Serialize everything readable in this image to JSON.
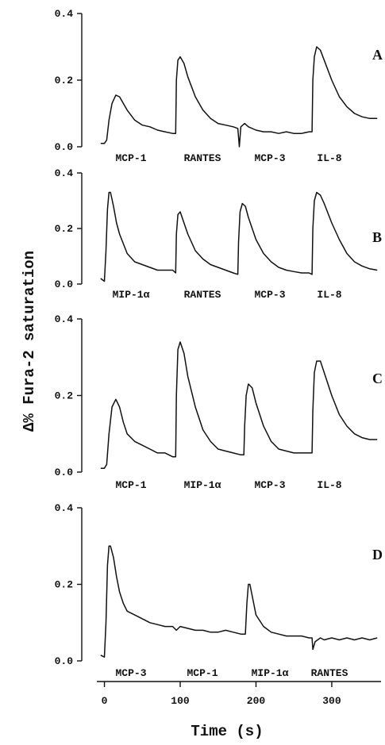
{
  "chart_data": {
    "type": "line",
    "ylabel": "Δ% Fura-2 saturation",
    "xlabel": "Time (s)",
    "xlim": [
      -10,
      365
    ],
    "xticks": [
      "0",
      "100",
      "200",
      "300"
    ],
    "xtick_values": [
      0,
      100,
      200,
      300
    ],
    "panels": [
      {
        "letter": "A",
        "ylim": [
          0,
          0.4
        ],
        "yticks": [
          "0.0",
          "0.2",
          "0.4"
        ],
        "ytick_values": [
          0,
          0.2,
          0.4
        ],
        "stimuli": [
          "MCP-1",
          "RANTES",
          "MCP-3",
          "IL-8"
        ],
        "stim_times": [
          3,
          95,
          178,
          275
        ],
        "series": [
          {
            "x": [
              -5,
              0,
              3,
              6,
              10,
              15,
              20,
              30,
              40,
              50,
              60,
              70,
              80,
              90,
              94,
              95,
              97,
              100,
              105,
              110,
              120,
              130,
              140,
              150,
              160,
              170,
              176,
              178,
              180,
              185,
              190,
              200,
              210,
              220,
              230,
              240,
              250,
              260,
              270,
              274,
              275,
              277,
              280,
              285,
              290,
              300,
              310,
              320,
              330,
              340,
              350,
              360
            ],
            "y": [
              0.01,
              0.01,
              0.02,
              0.08,
              0.13,
              0.155,
              0.15,
              0.11,
              0.08,
              0.065,
              0.06,
              0.05,
              0.045,
              0.04,
              0.04,
              0.2,
              0.26,
              0.27,
              0.25,
              0.21,
              0.15,
              0.11,
              0.085,
              0.07,
              0.065,
              0.06,
              0.055,
              0.0,
              0.06,
              0.07,
              0.06,
              0.05,
              0.045,
              0.045,
              0.04,
              0.045,
              0.04,
              0.04,
              0.045,
              0.045,
              0.2,
              0.27,
              0.3,
              0.29,
              0.26,
              0.2,
              0.15,
              0.12,
              0.1,
              0.09,
              0.085,
              0.085
            ]
          }
        ]
      },
      {
        "letter": "B",
        "ylim": [
          0,
          0.4
        ],
        "yticks": [
          "0.0",
          "0.2",
          "0.4"
        ],
        "ytick_values": [
          0,
          0.2,
          0.4
        ],
        "stimuli": [
          "MIP-1α",
          "RANTES",
          "MCP-3",
          "IL-8"
        ],
        "stim_times": [
          3,
          95,
          178,
          275
        ],
        "series": [
          {
            "x": [
              -5,
              0,
              2,
              4,
              6,
              8,
              12,
              16,
              20,
              30,
              40,
              50,
              60,
              70,
              80,
              90,
              94,
              95,
              97,
              100,
              105,
              110,
              120,
              130,
              140,
              150,
              160,
              170,
              176,
              177,
              179,
              182,
              186,
              190,
              200,
              210,
              220,
              230,
              240,
              250,
              260,
              270,
              274,
              275,
              277,
              280,
              285,
              290,
              300,
              310,
              320,
              330,
              340,
              350,
              360
            ],
            "y": [
              0.02,
              0.01,
              0.12,
              0.27,
              0.33,
              0.33,
              0.28,
              0.22,
              0.18,
              0.11,
              0.08,
              0.07,
              0.06,
              0.05,
              0.05,
              0.05,
              0.04,
              0.18,
              0.25,
              0.26,
              0.22,
              0.18,
              0.12,
              0.09,
              0.07,
              0.06,
              0.05,
              0.04,
              0.035,
              0.15,
              0.26,
              0.29,
              0.28,
              0.24,
              0.16,
              0.11,
              0.08,
              0.06,
              0.05,
              0.045,
              0.04,
              0.04,
              0.035,
              0.2,
              0.3,
              0.33,
              0.32,
              0.29,
              0.22,
              0.16,
              0.11,
              0.08,
              0.065,
              0.055,
              0.05
            ]
          }
        ]
      },
      {
        "letter": "C",
        "ylim": [
          0,
          0.4
        ],
        "yticks": [
          "0.0",
          "0.2",
          "0.4"
        ],
        "ytick_values": [
          0,
          0.2,
          0.4
        ],
        "stimuli": [
          "MCP-1",
          "MIP-1α",
          "MCP-3",
          "IL-8"
        ],
        "stim_times": [
          3,
          95,
          185,
          275
        ],
        "series": [
          {
            "x": [
              -5,
              0,
              3,
              6,
              10,
              15,
              20,
              25,
              30,
              40,
              50,
              60,
              70,
              80,
              90,
              94,
              95,
              97,
              100,
              105,
              110,
              120,
              130,
              140,
              150,
              160,
              170,
              180,
              184,
              185,
              187,
              190,
              195,
              200,
              210,
              220,
              230,
              240,
              250,
              260,
              270,
              274,
              275,
              277,
              280,
              285,
              290,
              300,
              310,
              320,
              330,
              340,
              350,
              360
            ],
            "y": [
              0.01,
              0.01,
              0.02,
              0.1,
              0.17,
              0.19,
              0.17,
              0.13,
              0.1,
              0.08,
              0.07,
              0.06,
              0.05,
              0.05,
              0.04,
              0.04,
              0.2,
              0.32,
              0.34,
              0.31,
              0.25,
              0.17,
              0.11,
              0.08,
              0.06,
              0.055,
              0.05,
              0.045,
              0.045,
              0.12,
              0.2,
              0.23,
              0.22,
              0.18,
              0.12,
              0.08,
              0.06,
              0.055,
              0.05,
              0.05,
              0.05,
              0.05,
              0.16,
              0.26,
              0.29,
              0.29,
              0.26,
              0.2,
              0.15,
              0.12,
              0.1,
              0.09,
              0.085,
              0.085
            ]
          }
        ]
      },
      {
        "letter": "D",
        "ylim": [
          0,
          0.4
        ],
        "yticks": [
          "0.0",
          "0.2",
          "0.4"
        ],
        "ytick_values": [
          0,
          0.2,
          0.4
        ],
        "stimuli": [
          "MCP-3",
          "MCP-1",
          "MIP-1α",
          "RANTES"
        ],
        "stim_times": [
          3,
          95,
          188,
          275
        ],
        "series": [
          {
            "x": [
              -5,
              0,
              2,
              4,
              6,
              8,
              12,
              16,
              20,
              25,
              30,
              40,
              50,
              60,
              70,
              80,
              90,
              95,
              100,
              110,
              120,
              130,
              140,
              150,
              160,
              170,
              180,
              186,
              188,
              190,
              192,
              195,
              200,
              210,
              220,
              230,
              240,
              250,
              260,
              270,
              274,
              275,
              278,
              285,
              290,
              300,
              310,
              320,
              330,
              340,
              350,
              360
            ],
            "y": [
              0.015,
              0.01,
              0.1,
              0.25,
              0.3,
              0.3,
              0.27,
              0.22,
              0.18,
              0.15,
              0.13,
              0.12,
              0.11,
              0.1,
              0.095,
              0.09,
              0.09,
              0.08,
              0.09,
              0.085,
              0.08,
              0.08,
              0.075,
              0.075,
              0.08,
              0.075,
              0.07,
              0.07,
              0.15,
              0.2,
              0.2,
              0.17,
              0.12,
              0.09,
              0.075,
              0.07,
              0.065,
              0.065,
              0.065,
              0.06,
              0.06,
              0.03,
              0.05,
              0.06,
              0.055,
              0.06,
              0.055,
              0.06,
              0.055,
              0.06,
              0.055,
              0.06
            ]
          }
        ]
      }
    ]
  }
}
